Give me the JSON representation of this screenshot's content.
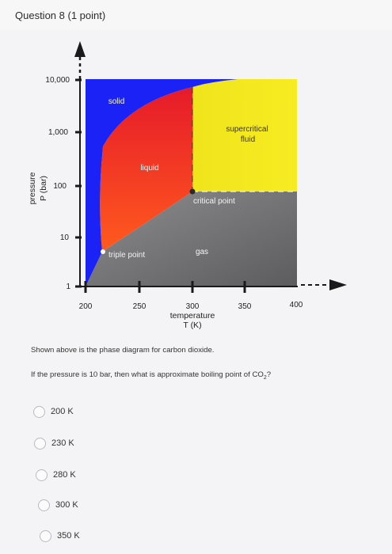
{
  "question": {
    "title": "Question 8",
    "points": "(1 point)"
  },
  "diagram": {
    "y_axis": {
      "title_line1": "pressure",
      "title_line2": "P (bar)",
      "ticks": [
        "10,000",
        "1,000",
        "100",
        "10",
        "1"
      ]
    },
    "x_axis": {
      "title_line1": "temperature",
      "title_line2": "T (K)",
      "ticks": [
        "200",
        "250",
        "300",
        "350",
        "400"
      ]
    },
    "regions": {
      "solid": "solid",
      "liquid": "liquid",
      "supercritical_line1": "supercritical",
      "supercritical_line2": "fluid",
      "gas": "gas"
    },
    "points": {
      "triple": "triple point",
      "critical": "critical point"
    },
    "colors": {
      "solid": "#1a22f5",
      "liquid_top": "#e61a2a",
      "liquid_bottom": "#ff5a1e",
      "supercritical": "#f5ea1e",
      "gas": "#8a8a8c",
      "axis": "#1a1a1a"
    }
  },
  "prompt": {
    "line1": "Shown above is the phase diagram for carbon dioxide.",
    "line2_before": "If the pressure is 10 bar, then what is approximate boiling point of CO",
    "line2_sub": "2",
    "line2_after": "?"
  },
  "options": [
    {
      "label": "200 K"
    },
    {
      "label": "230 K"
    },
    {
      "label": "280 K"
    },
    {
      "label": "300 K"
    },
    {
      "label": "350 K"
    }
  ]
}
